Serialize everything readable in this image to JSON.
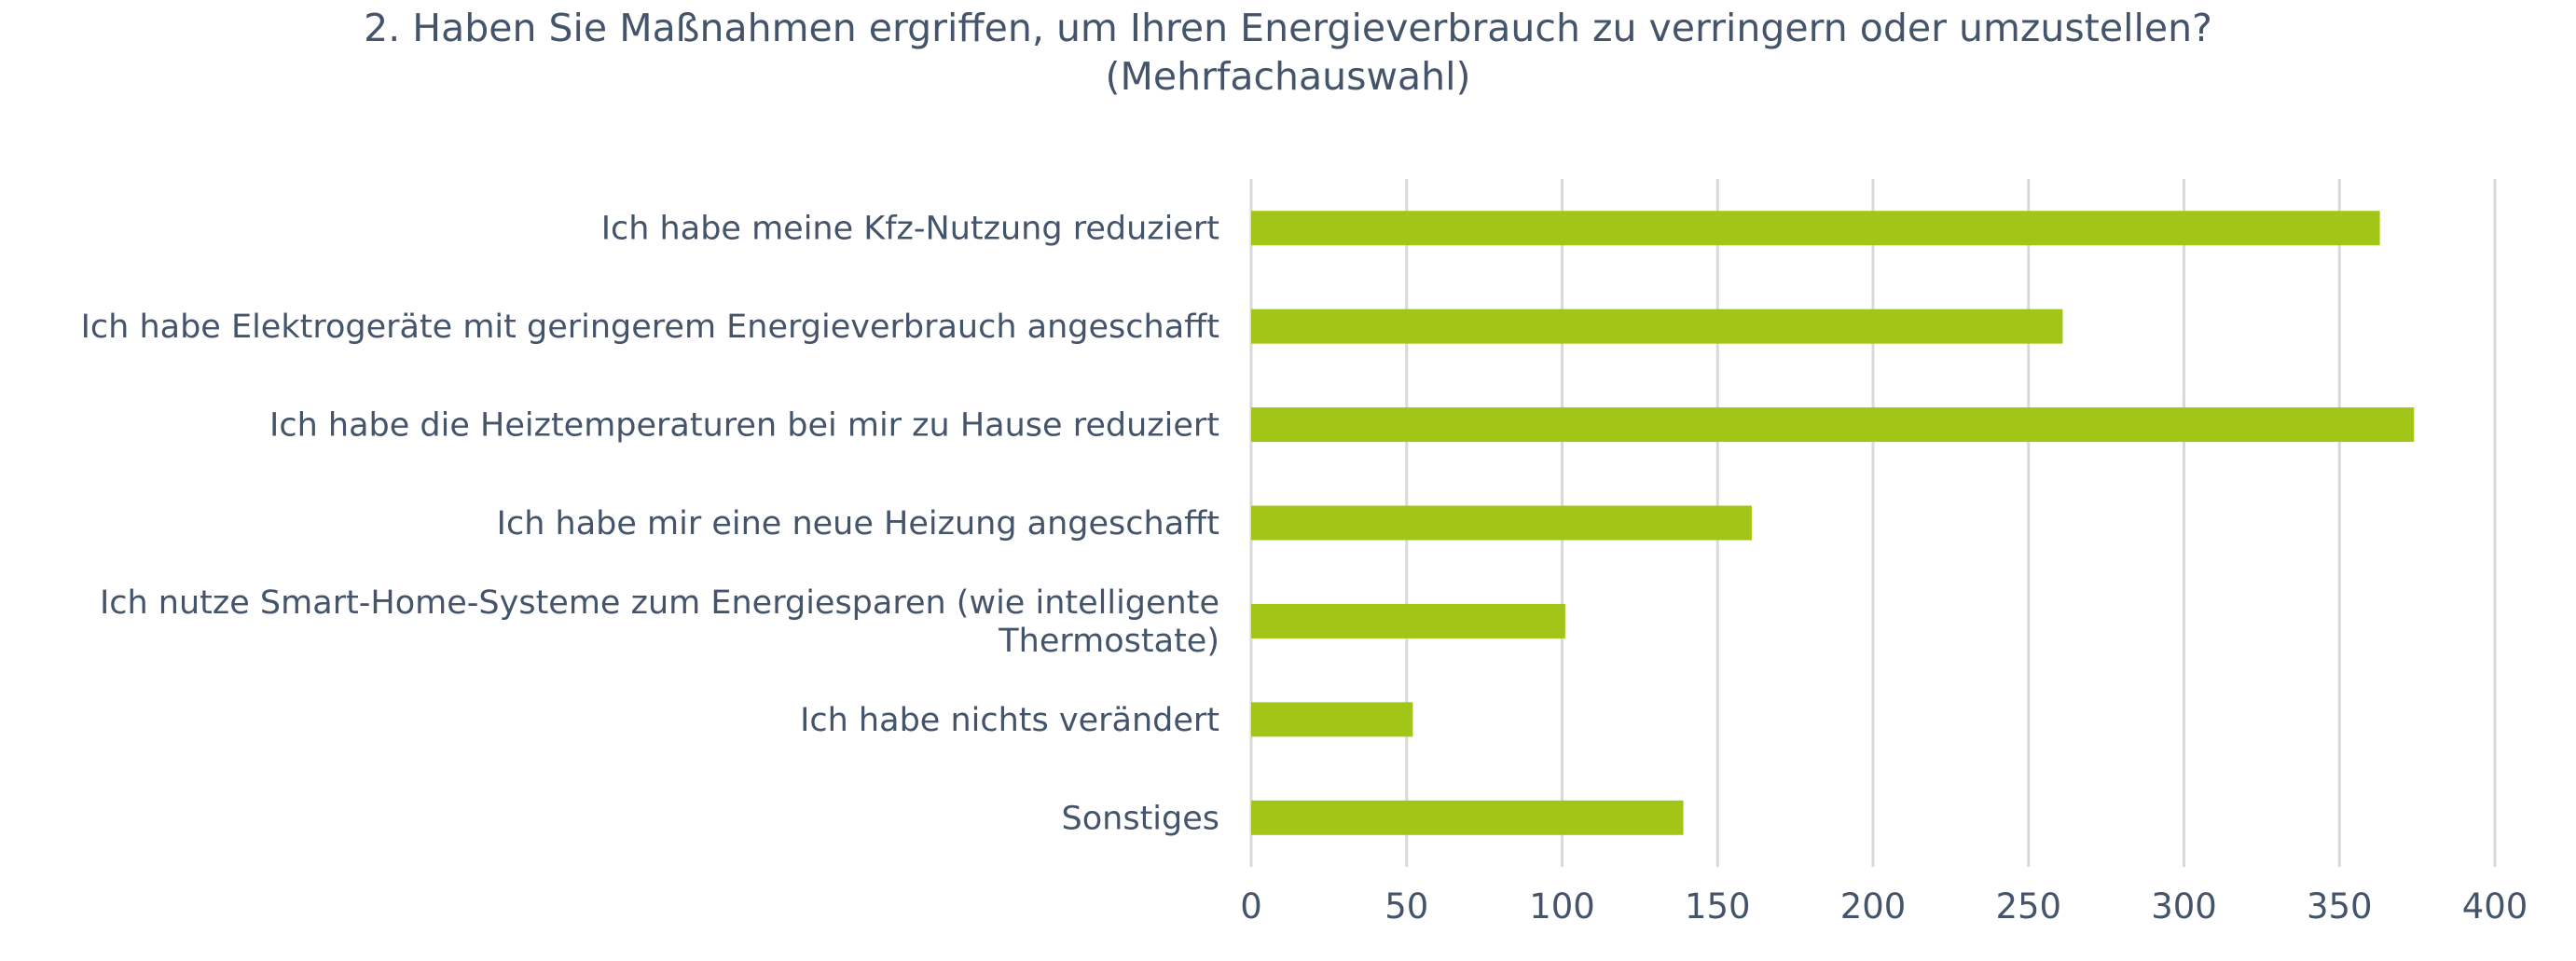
{
  "chart_data": {
    "type": "bar",
    "orientation": "horizontal",
    "title": "2. Haben Sie Maßnahmen ergriffen, um Ihren Energieverbrauch zu verringern oder umzustellen?",
    "subtitle": "(Mehrfachauswahl)",
    "categories": [
      "Ich habe meine Kfz-Nutzung reduziert",
      "Ich habe Elektrogeräte mit geringerem Energieverbrauch angeschafft",
      "Ich habe die Heiztemperaturen bei mir zu Hause reduziert",
      "Ich habe mir eine neue Heizung angeschafft",
      "Ich nutze Smart-Home-Systeme zum Energiesparen (wie intelligente Thermostate)",
      "Ich habe nichts verändert",
      "Sonstiges"
    ],
    "category_label_lines": [
      [
        "Ich habe meine Kfz-Nutzung reduziert"
      ],
      [
        "Ich habe Elektrogeräte mit geringerem Energieverbrauch angeschafft"
      ],
      [
        "Ich habe die Heiztemperaturen bei mir zu Hause reduziert"
      ],
      [
        "Ich habe mir eine neue Heizung angeschafft"
      ],
      [
        "Ich nutze Smart-Home-Systeme zum Energiesparen (wie intelligente",
        "Thermostate)"
      ],
      [
        "Ich habe nichts verändert"
      ],
      [
        "Sonstiges"
      ]
    ],
    "values": [
      363,
      261,
      374,
      161,
      101,
      52,
      139
    ],
    "xlim": [
      0,
      400
    ],
    "xticks": [
      0,
      50,
      100,
      150,
      200,
      250,
      300,
      350,
      400
    ],
    "xtick_labels": [
      "0",
      "50",
      "100",
      "150",
      "200",
      "250",
      "300",
      "350",
      "400"
    ],
    "xlabel": "",
    "ylabel": "",
    "grid": "vertical",
    "legend": "none",
    "colors": {
      "bar": "#a2c617",
      "grid": "#d9d9d9",
      "text": "#44546a"
    }
  }
}
